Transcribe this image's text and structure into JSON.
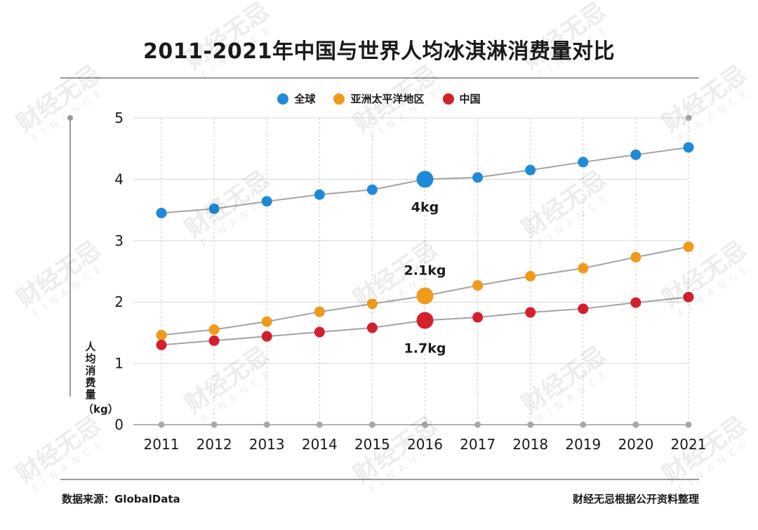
{
  "title": "2011-2021年中国与世界人均冰淇淋消费量对比",
  "legend": [
    {
      "label": "全球",
      "color": "#1f8ad8"
    },
    {
      "label": "亚洲太平洋地区",
      "color": "#f09a1a"
    },
    {
      "label": "中国",
      "color": "#d4202a"
    }
  ],
  "footer": {
    "source": "数据来源：GlobalData",
    "credit": "财经无忌根据公开资料整理"
  },
  "watermark": {
    "text": "财经无忌",
    "subtext": "FINANCE"
  },
  "chart_data": {
    "type": "line",
    "x": [
      "2011",
      "2012",
      "2013",
      "2014",
      "2015",
      "2016",
      "2017",
      "2018",
      "2019",
      "2020",
      "2021"
    ],
    "ylabel": "人均消费量",
    "yunit": "（kg）",
    "ylim": [
      0,
      5
    ],
    "yticks": [
      0,
      1,
      2,
      3,
      4,
      5
    ],
    "grid": true,
    "legend_position": "top-center",
    "series": [
      {
        "name": "全球",
        "color": "#1f8ad8",
        "values": [
          3.45,
          3.52,
          3.64,
          3.75,
          3.83,
          4.0,
          4.03,
          4.15,
          4.28,
          4.4,
          4.52
        ]
      },
      {
        "name": "亚洲太平洋地区",
        "color": "#f09a1a",
        "values": [
          1.46,
          1.55,
          1.68,
          1.84,
          1.97,
          2.1,
          2.27,
          2.42,
          2.55,
          2.73,
          2.9
        ]
      },
      {
        "name": "中国",
        "color": "#d4202a",
        "values": [
          1.3,
          1.37,
          1.44,
          1.51,
          1.58,
          1.7,
          1.75,
          1.83,
          1.89,
          1.99,
          2.08
        ]
      }
    ],
    "annotations": [
      {
        "series": 0,
        "index": 5,
        "text": "4kg"
      },
      {
        "series": 1,
        "index": 5,
        "text": "2.1kg"
      },
      {
        "series": 2,
        "index": 5,
        "text": "1.7kg"
      }
    ]
  }
}
